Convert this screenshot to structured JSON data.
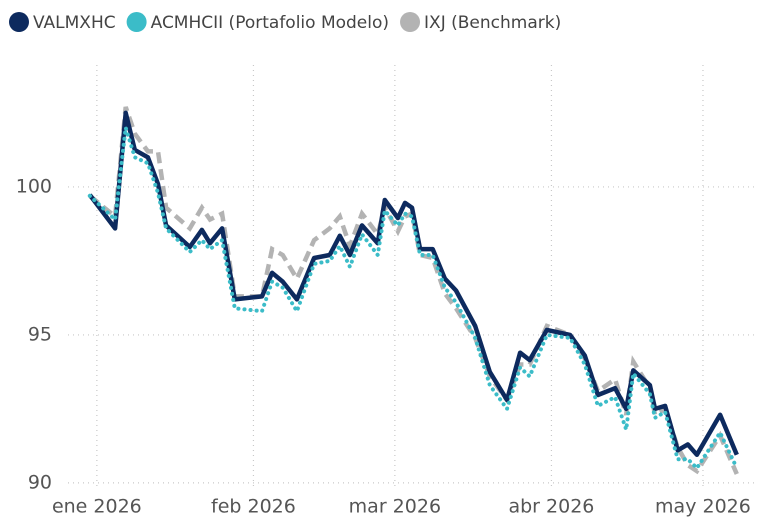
{
  "chart_data": {
    "type": "line",
    "x": [
      -1.4,
      3.6,
      5.7,
      7.5,
      10.1,
      12.1,
      13.7,
      18.4,
      20.8,
      22.4,
      24.8,
      27.3,
      32.7,
      34.7,
      36.8,
      39.6,
      43.0,
      46.1,
      48.1,
      50.1,
      52.5,
      55.6,
      57.0,
      59.6,
      61.0,
      62.4,
      64.0,
      66.5,
      68.9,
      71.1,
      74.9,
      77.8,
      81.2,
      83.8,
      85.7,
      89.1,
      93.7,
      96.6,
      99.2,
      102.6,
      104.8,
      106.2,
      109.5,
      110.5,
      112.5,
      115.0,
      117.0,
      118.8,
      123.4,
      126.7
    ],
    "series": [
      {
        "name": "VALMXHC",
        "color": "#0d2a5e",
        "style": "solid",
        "values": [
          99.73,
          98.6,
          102.5,
          101.25,
          101.0,
          100.1,
          98.7,
          97.97,
          98.55,
          98.1,
          98.6,
          96.2,
          96.3,
          97.1,
          96.8,
          96.2,
          97.6,
          97.7,
          98.35,
          97.7,
          98.7,
          98.1,
          99.56,
          98.95,
          99.46,
          99.3,
          97.9,
          97.9,
          96.9,
          96.5,
          95.3,
          93.75,
          92.8,
          94.4,
          94.15,
          95.17,
          95.0,
          94.3,
          92.97,
          93.2,
          92.5,
          93.8,
          93.3,
          92.5,
          92.6,
          91.1,
          91.3,
          90.95,
          92.3,
          90.95
        ]
      },
      {
        "name": "ACMHCII (Portafolio Modelo)",
        "color": "#3bbcc8",
        "style": "dotted",
        "values": [
          99.7,
          98.9,
          102.0,
          101.0,
          100.8,
          99.8,
          98.6,
          97.8,
          98.2,
          97.9,
          98.2,
          95.9,
          95.8,
          96.8,
          96.6,
          95.8,
          97.4,
          97.5,
          98.0,
          97.3,
          98.4,
          97.7,
          99.2,
          98.7,
          99.1,
          99.0,
          97.7,
          97.7,
          96.6,
          96.1,
          94.9,
          93.3,
          92.5,
          93.9,
          93.6,
          95.0,
          94.9,
          94.0,
          92.6,
          92.9,
          91.8,
          93.7,
          93.0,
          92.2,
          92.4,
          90.8,
          90.8,
          90.5,
          91.7,
          90.5
        ]
      },
      {
        "name": "IXJ (Benchmark)",
        "color": "#b3b3b3",
        "style": "dashed",
        "values": [
          99.7,
          99.0,
          102.7,
          101.8,
          101.2,
          101.2,
          99.3,
          98.6,
          99.3,
          98.9,
          99.1,
          96.3,
          96.3,
          97.9,
          97.7,
          96.9,
          98.2,
          98.6,
          99.0,
          98.0,
          99.1,
          98.4,
          99.3,
          98.5,
          99.0,
          99.1,
          97.7,
          97.6,
          96.4,
          95.9,
          94.9,
          93.6,
          92.8,
          94.0,
          94.0,
          95.3,
          95.0,
          94.2,
          93.1,
          93.5,
          92.3,
          94.1,
          93.2,
          92.3,
          92.5,
          91.2,
          90.6,
          90.4,
          91.6,
          90.3
        ]
      }
    ],
    "xlim": [
      -7.3,
      130.7
    ],
    "xticks": [
      {
        "value": 0,
        "label": "ene 2026"
      },
      {
        "value": 31,
        "label": "feb 2026"
      },
      {
        "value": 59,
        "label": "mar 2026"
      },
      {
        "value": 90,
        "label": "abr 2026"
      },
      {
        "value": 120,
        "label": "may 2026"
      }
    ],
    "ylim": [
      89.76,
      104.12
    ],
    "yticks": [
      90,
      95,
      100
    ],
    "grid": true,
    "legend": "top-left"
  }
}
